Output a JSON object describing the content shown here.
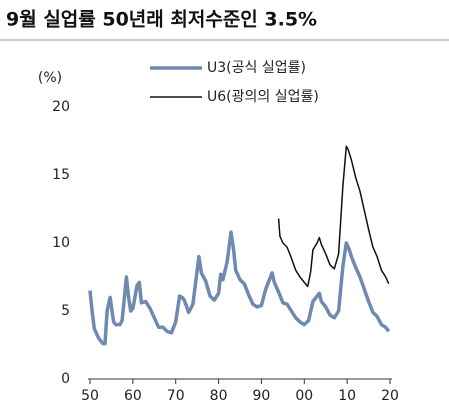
{
  "chart_data": {
    "type": "line",
    "title": "9월 실업률 50년래 최저수준인 3.5%",
    "ylabel": "(%)",
    "xlim": [
      1950,
      2020
    ],
    "ylim": [
      0,
      20
    ],
    "yticks": [
      0,
      5,
      10,
      15,
      20
    ],
    "xticks": [
      {
        "value": 1950,
        "label": "50"
      },
      {
        "value": 1960,
        "label": "60"
      },
      {
        "value": 1970,
        "label": "70"
      },
      {
        "value": 1980,
        "label": "80"
      },
      {
        "value": 1990,
        "label": "90"
      },
      {
        "value": 2000,
        "label": "00"
      },
      {
        "value": 2010,
        "label": "10"
      },
      {
        "value": 2020,
        "label": "20"
      }
    ],
    "grid": false,
    "series": [
      {
        "name": "U3(공식 실업률)",
        "color": "#6f89b1",
        "x": [
          1950,
          1950.5,
          1951,
          1952,
          1953,
          1953.5,
          1954,
          1954.7,
          1955.5,
          1956,
          1957,
          1957.5,
          1958.5,
          1959,
          1959.5,
          1960,
          1961,
          1961.5,
          1962,
          1963,
          1964,
          1965,
          1966,
          1967,
          1968,
          1969,
          1970,
          1970.9,
          1971.5,
          1972,
          1973,
          1974,
          1975.4,
          1976,
          1977,
          1978,
          1979,
          1980,
          1980.5,
          1981,
          1982,
          1982.9,
          1983.5,
          1984,
          1985,
          1986,
          1987,
          1988,
          1989,
          1990,
          1991,
          1992.5,
          1993,
          1994,
          1995,
          1996,
          1997,
          1998,
          1999,
          2000,
          2001,
          2002,
          2003.5,
          2004,
          2005,
          2006,
          2007,
          2008,
          2009,
          2009.8,
          2010.5,
          2011,
          2012,
          2013,
          2014,
          2015,
          2016,
          2017,
          2018,
          2019,
          2019.7
        ],
        "values": [
          6.5,
          5.0,
          3.7,
          3.0,
          2.6,
          2.6,
          5.0,
          6.0,
          4.2,
          4.0,
          4.0,
          4.3,
          7.5,
          6.0,
          5.0,
          5.2,
          6.9,
          7.1,
          5.6,
          5.7,
          5.2,
          4.5,
          3.8,
          3.8,
          3.5,
          3.4,
          4.2,
          6.1,
          6.0,
          5.8,
          4.9,
          5.5,
          9.0,
          7.8,
          7.2,
          6.1,
          5.8,
          6.3,
          7.7,
          7.3,
          8.6,
          10.8,
          9.5,
          8.0,
          7.3,
          7.0,
          6.2,
          5.5,
          5.3,
          5.4,
          6.6,
          7.8,
          7.1,
          6.4,
          5.6,
          5.5,
          5.0,
          4.5,
          4.2,
          4.0,
          4.3,
          5.7,
          6.3,
          5.7,
          5.3,
          4.7,
          4.5,
          5.0,
          8.3,
          10.0,
          9.5,
          9.0,
          8.2,
          7.5,
          6.6,
          5.7,
          4.9,
          4.6,
          4.0,
          3.8,
          3.5
        ]
      },
      {
        "name": "U6(광의의 실업률)",
        "color": "#111111",
        "x": [
          1994,
          1994.3,
          1995,
          1996,
          1997,
          1998,
          1999,
          2000,
          2000.8,
          2001.5,
          2002,
          2003,
          2003.5,
          2004,
          2005,
          2006,
          2007,
          2008,
          2009,
          2009.8,
          2010.2,
          2010.5,
          2011,
          2012,
          2013,
          2014,
          2015,
          2016,
          2017,
          2018,
          2019,
          2019.7
        ],
        "values": [
          11.8,
          10.5,
          10.0,
          9.7,
          8.9,
          8.0,
          7.5,
          7.1,
          6.8,
          7.9,
          9.5,
          10.0,
          10.4,
          9.9,
          9.2,
          8.4,
          8.1,
          9.2,
          14.2,
          17.1,
          16.9,
          16.6,
          16.1,
          14.8,
          13.8,
          12.4,
          11.0,
          9.7,
          9.0,
          8.0,
          7.5,
          7.0
        ]
      }
    ]
  }
}
